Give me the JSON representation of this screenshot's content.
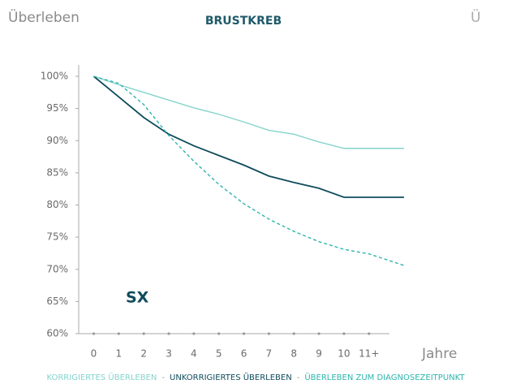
{
  "header": {
    "left": "Überleben",
    "center": "BRUSTKREB",
    "right": "Ü"
  },
  "chart_data": {
    "type": "line",
    "x_label": "Jahre",
    "annotation": "SX",
    "legend_separator": "-",
    "xlim": [
      -0.6,
      12.5
    ],
    "ylim": [
      60,
      100
    ],
    "xticks": [
      0,
      1,
      2,
      3,
      4,
      5,
      6,
      7,
      8,
      9,
      10,
      {
        "value": 11,
        "label": "11+"
      }
    ],
    "yticks": [
      {
        "value": 60,
        "label": "60%"
      },
      {
        "value": 65,
        "label": "65%"
      },
      {
        "value": 70,
        "label": "70%"
      },
      {
        "value": 75,
        "label": "75%"
      },
      {
        "value": 80,
        "label": "80%"
      },
      {
        "value": 85,
        "label": "85%"
      },
      {
        "value": 90,
        "label": "90%"
      },
      {
        "value": 95,
        "label": "95%"
      },
      {
        "value": 100,
        "label": "100%"
      }
    ],
    "x": [
      0,
      1,
      2,
      3,
      4,
      5,
      6,
      7,
      8,
      9,
      10,
      11,
      12.4
    ],
    "series": [
      {
        "name": "KORRIGIERTES ÜBERLEBEN",
        "color": "#84d4cd",
        "dashed": false,
        "values": [
          100,
          98.7,
          97.5,
          96.3,
          95.1,
          94.1,
          92.9,
          91.6,
          91.0,
          89.8,
          88.8,
          88.8,
          88.8
        ]
      },
      {
        "name": "UNKORRIGIERTES ÜBERLEBEN",
        "color": "#0f4c5c",
        "dashed": false,
        "values": [
          100,
          96.8,
          93.6,
          91.0,
          89.2,
          87.7,
          86.2,
          84.5,
          83.5,
          82.6,
          81.2,
          81.2,
          81.2
        ]
      },
      {
        "name": "ÜBERLEBEN ZUM DIAGNOSEZEITPUNKT",
        "color": "#2db5ad",
        "dashed": true,
        "values": [
          100,
          98.9,
          95.6,
          90.8,
          86.8,
          83.2,
          80.2,
          77.8,
          75.9,
          74.3,
          73.1,
          72.4,
          70.6
        ]
      }
    ]
  }
}
